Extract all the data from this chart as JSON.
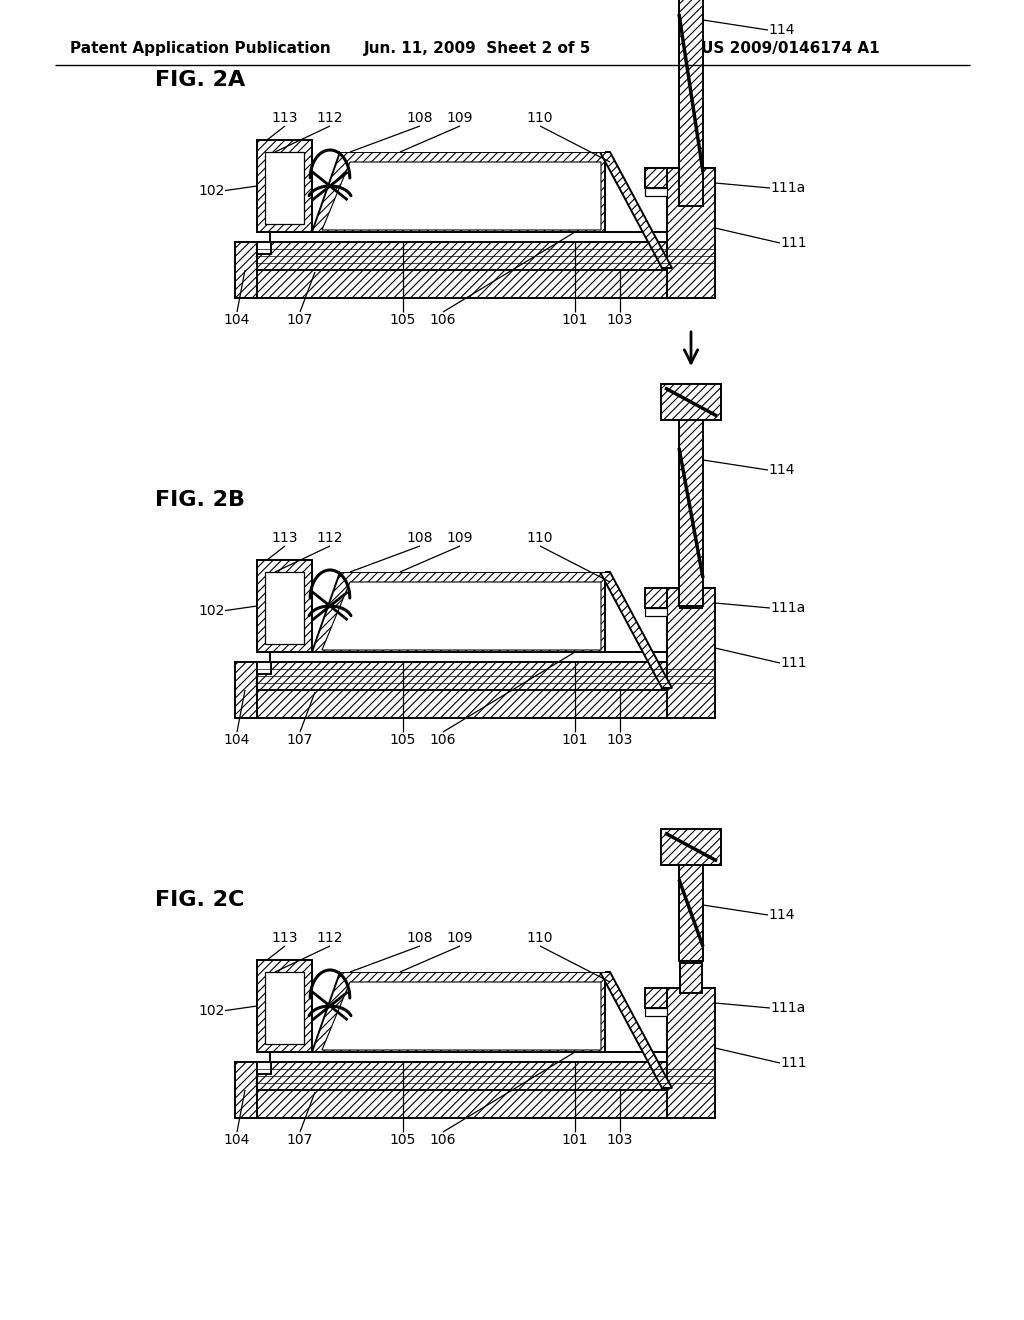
{
  "header_left": "Patent Application Publication",
  "header_mid": "Jun. 11, 2009  Sheet 2 of 5",
  "header_right": "US 2009/0146174 A1",
  "bg_color": "#ffffff"
}
